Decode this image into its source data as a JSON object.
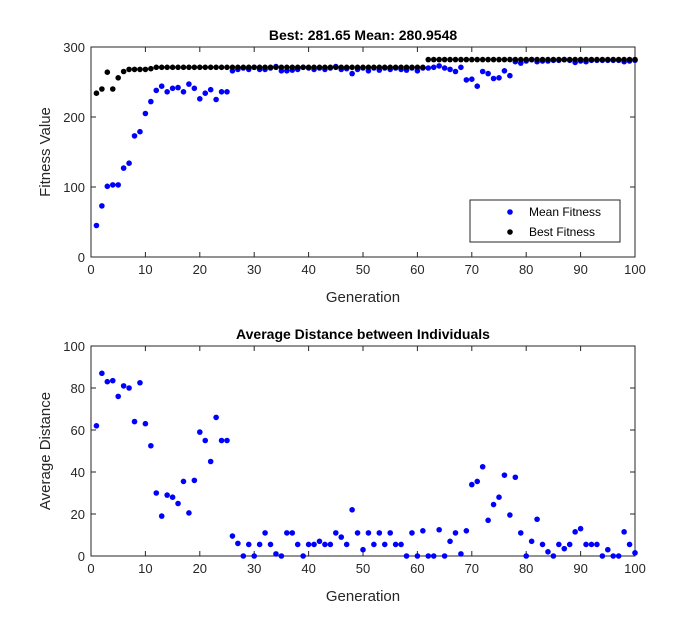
{
  "chart_data": [
    {
      "type": "scatter",
      "title": "Best: 281.65  Mean: 280.9548",
      "xlabel": "Generation",
      "ylabel": "Fitness Value",
      "xlim": [
        0,
        100
      ],
      "ylim": [
        0,
        300
      ],
      "xticks": [
        0,
        10,
        20,
        30,
        40,
        50,
        60,
        70,
        80,
        90,
        100
      ],
      "yticks": [
        0,
        100,
        200,
        300
      ],
      "grid": false,
      "legend": {
        "position": "bottom-right"
      },
      "series": [
        {
          "name": "Mean Fitness",
          "color": "#0000ff",
          "x": [
            1,
            2,
            3,
            4,
            5,
            6,
            7,
            8,
            9,
            10,
            11,
            12,
            13,
            14,
            15,
            16,
            17,
            18,
            19,
            20,
            21,
            22,
            23,
            24,
            25,
            26,
            27,
            28,
            29,
            30,
            31,
            32,
            33,
            34,
            35,
            36,
            37,
            38,
            39,
            40,
            41,
            42,
            43,
            44,
            45,
            46,
            47,
            48,
            49,
            50,
            51,
            52,
            53,
            54,
            55,
            56,
            57,
            58,
            59,
            60,
            61,
            62,
            63,
            64,
            65,
            66,
            67,
            68,
            69,
            70,
            71,
            72,
            73,
            74,
            75,
            76,
            77,
            78,
            79,
            80,
            81,
            82,
            83,
            84,
            85,
            86,
            87,
            88,
            89,
            90,
            91,
            92,
            93,
            94,
            95,
            96,
            97,
            98,
            99,
            100
          ],
          "y": [
            45,
            73,
            101,
            103,
            103,
            127,
            134,
            173,
            179,
            205,
            222,
            238,
            244,
            236,
            241,
            242,
            236,
            247,
            241,
            226,
            234,
            239,
            225,
            236,
            236,
            266,
            268,
            270,
            268,
            271,
            268,
            268,
            270,
            272,
            266,
            266,
            267,
            268,
            271,
            270,
            268,
            270,
            268,
            270,
            272,
            268,
            269,
            262,
            268,
            270,
            266,
            270,
            267,
            270,
            268,
            270,
            268,
            267,
            270,
            266,
            270,
            270,
            271,
            273,
            270,
            268,
            265,
            271,
            253,
            254,
            244,
            265,
            262,
            255,
            256,
            266,
            259,
            279,
            277,
            280,
            282,
            279,
            280,
            280,
            281,
            281,
            282,
            281,
            278,
            280,
            279,
            281,
            281,
            281,
            281,
            281,
            281,
            279,
            280,
            281
          ]
        },
        {
          "name": "Best Fitness",
          "color": "#000000",
          "x": [
            1,
            2,
            3,
            4,
            5,
            6,
            7,
            8,
            9,
            10,
            11,
            12,
            13,
            14,
            15,
            16,
            17,
            18,
            19,
            20,
            21,
            22,
            23,
            24,
            25,
            26,
            27,
            28,
            29,
            30,
            31,
            32,
            33,
            34,
            35,
            36,
            37,
            38,
            39,
            40,
            41,
            42,
            43,
            44,
            45,
            46,
            47,
            48,
            49,
            50,
            51,
            52,
            53,
            54,
            55,
            56,
            57,
            58,
            59,
            60,
            61,
            62,
            63,
            64,
            65,
            66,
            67,
            68,
            69,
            70,
            71,
            72,
            73,
            74,
            75,
            76,
            77,
            78,
            79,
            80,
            81,
            82,
            83,
            84,
            85,
            86,
            87,
            88,
            89,
            90,
            91,
            92,
            93,
            94,
            95,
            96,
            97,
            98,
            99,
            100
          ],
          "y": [
            234,
            240,
            264,
            240,
            256,
            265,
            268,
            268,
            268,
            268,
            269,
            271,
            271,
            271,
            271,
            271,
            271,
            271,
            271,
            271,
            271,
            271,
            271,
            271,
            271,
            271,
            271,
            271,
            271,
            271,
            271,
            271,
            271,
            271,
            271,
            271,
            271,
            271,
            271,
            271,
            271,
            271,
            271,
            271,
            271,
            271,
            271,
            271,
            271,
            271,
            271,
            271,
            271,
            271,
            271,
            271,
            271,
            271,
            271,
            271,
            271,
            282,
            282,
            282,
            282,
            282,
            282,
            282,
            282,
            282,
            282,
            282,
            282,
            282,
            282,
            282,
            282,
            282,
            282,
            282,
            282,
            282,
            282,
            282,
            282,
            282,
            282,
            282,
            282,
            282,
            282,
            282,
            282,
            282,
            282,
            282,
            282,
            282,
            282,
            282
          ]
        }
      ]
    },
    {
      "type": "scatter",
      "title": "Average Distance between Individuals",
      "xlabel": "Generation",
      "ylabel": "Average Distance",
      "xlim": [
        0,
        100
      ],
      "ylim": [
        0,
        100
      ],
      "xticks": [
        0,
        10,
        20,
        30,
        40,
        50,
        60,
        70,
        80,
        90,
        100
      ],
      "yticks": [
        0,
        20,
        40,
        60,
        80,
        100
      ],
      "grid": false,
      "series": [
        {
          "color": "#0000ff",
          "x": [
            1,
            2,
            3,
            4,
            5,
            6,
            7,
            8,
            9,
            10,
            11,
            12,
            13,
            14,
            15,
            16,
            17,
            18,
            19,
            20,
            21,
            22,
            23,
            24,
            25,
            26,
            27,
            28,
            29,
            30,
            31,
            32,
            33,
            34,
            35,
            36,
            37,
            38,
            39,
            40,
            41,
            42,
            43,
            44,
            45,
            46,
            47,
            48,
            49,
            50,
            51,
            52,
            53,
            54,
            55,
            56,
            57,
            58,
            59,
            60,
            61,
            62,
            63,
            64,
            65,
            66,
            67,
            68,
            69,
            70,
            71,
            72,
            73,
            74,
            75,
            76,
            77,
            78,
            79,
            80,
            81,
            82,
            83,
            84,
            85,
            86,
            87,
            88,
            89,
            90,
            91,
            92,
            93,
            94,
            95,
            96,
            97,
            98,
            99,
            100
          ],
          "y": [
            62,
            87,
            83,
            83.5,
            76,
            81,
            80,
            64,
            82.5,
            63,
            52.5,
            30,
            19,
            29,
            28,
            25,
            35.5,
            20.5,
            36,
            59,
            55,
            45,
            66,
            55,
            55,
            9.5,
            6,
            0,
            5.5,
            0,
            5.5,
            11,
            5.5,
            1,
            0,
            11,
            11,
            5.5,
            0,
            5.5,
            5.5,
            7,
            5.5,
            5.5,
            11,
            9,
            5.5,
            22,
            11,
            3,
            11,
            5.5,
            11,
            5.5,
            11,
            5.5,
            5.5,
            0,
            11,
            0,
            12,
            0,
            0,
            12.5,
            0,
            7,
            11,
            1,
            12,
            34,
            35.5,
            42.5,
            17,
            24.5,
            28,
            38.5,
            19.5,
            37.5,
            11,
            0,
            7,
            17.5,
            5.5,
            2,
            0,
            5.5,
            3.5,
            5.5,
            11.5,
            13,
            5.5,
            5.5,
            5.5,
            0,
            3,
            0,
            0,
            11.5,
            5.5,
            1.5
          ]
        }
      ]
    }
  ]
}
